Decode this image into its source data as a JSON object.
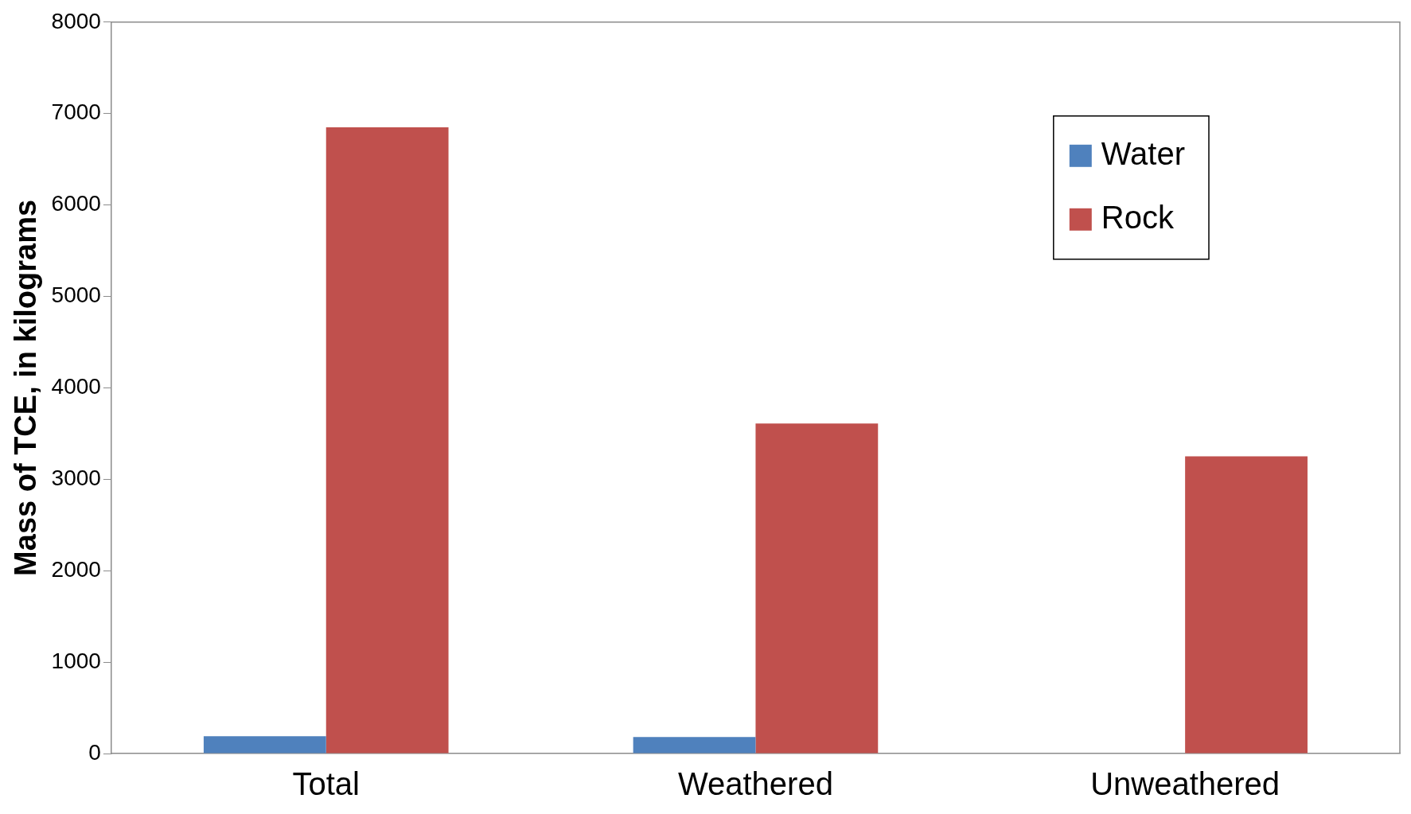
{
  "chart_data": {
    "type": "bar",
    "ylabel": "Mass of TCE, in kilograms",
    "categories": [
      "Total",
      "Weathered",
      "Unweathered"
    ],
    "series": [
      {
        "name": "Water",
        "color": "#4f81bd",
        "values": [
          190,
          180,
          0
        ]
      },
      {
        "name": "Rock",
        "color": "#c0504d",
        "values": [
          6850,
          3610,
          3250
        ]
      }
    ],
    "ylim": [
      0,
      8000
    ],
    "yticks": [
      0,
      1000,
      2000,
      3000,
      4000,
      5000,
      6000,
      7000,
      8000
    ],
    "grid": false,
    "legend": "top right"
  }
}
